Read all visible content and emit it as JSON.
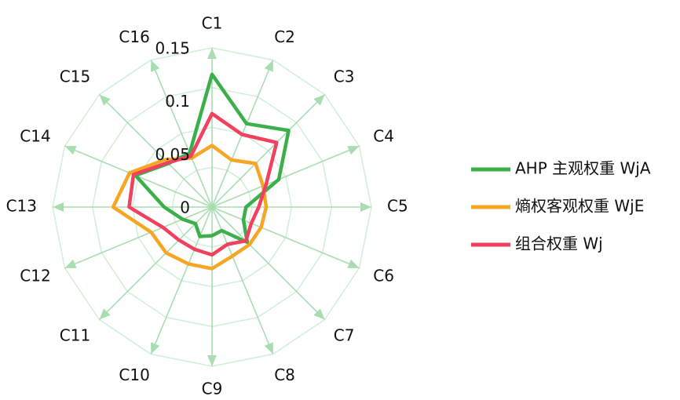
{
  "chart_data": {
    "type": "radar",
    "title": "",
    "categories": [
      "C1",
      "C2",
      "C3",
      "C4",
      "C5",
      "C6",
      "C7",
      "C8",
      "C9",
      "C10",
      "C11",
      "C12",
      "C13",
      "C14",
      "C15",
      "C16"
    ],
    "r_ticks": [
      0,
      0.05,
      0.1,
      0.15
    ],
    "r_tick_labels": [
      "0",
      "0.05",
      "0.1",
      "0.15"
    ],
    "r_max": 0.15,
    "grid": true,
    "legend_position": "right",
    "series": [
      {
        "name": "AHP 主观权重 WjA",
        "color": "#3BB04A",
        "values": [
          0.125,
          0.085,
          0.102,
          0.068,
          0.032,
          0.032,
          0.047,
          0.024,
          0.027,
          0.03,
          0.022,
          0.03,
          0.045,
          0.078,
          0.058,
          0.055
        ]
      },
      {
        "name": "熵权客观权重 WjE",
        "color": "#F6A623",
        "values": [
          0.058,
          0.048,
          0.058,
          0.052,
          0.051,
          0.05,
          0.05,
          0.05,
          0.058,
          0.058,
          0.061,
          0.062,
          0.093,
          0.084,
          0.063,
          0.05
        ]
      },
      {
        "name": "组合权重 Wj",
        "color": "#F2405F",
        "values": [
          0.088,
          0.074,
          0.086,
          0.055,
          0.044,
          0.04,
          0.045,
          0.038,
          0.045,
          0.043,
          0.044,
          0.05,
          0.078,
          0.08,
          0.059,
          0.052
        ]
      }
    ]
  }
}
